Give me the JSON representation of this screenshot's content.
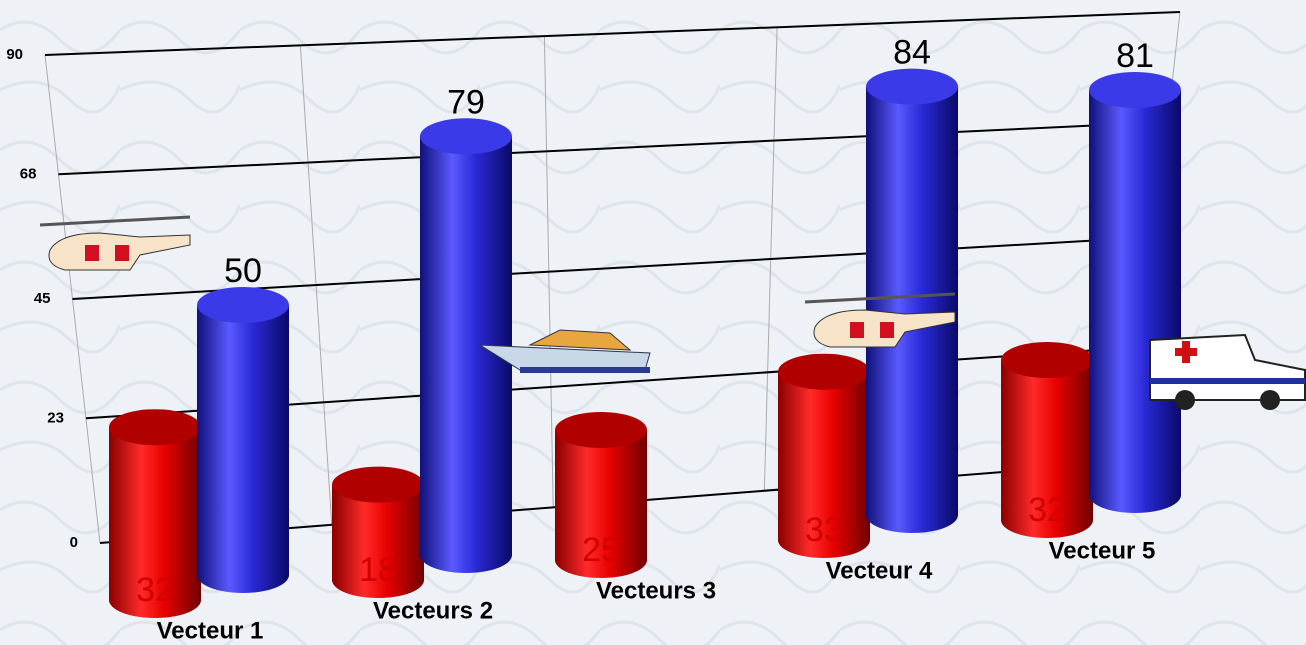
{
  "chart_data": {
    "type": "bar",
    "categories": [
      "Vecteur 1",
      "Vecteurs 2",
      "Vecteurs 3",
      "Vecteur 4",
      "Vecteur 5"
    ],
    "series": [
      {
        "color": "#e00000",
        "values": [
          32,
          18,
          25,
          33,
          32
        ]
      },
      {
        "color": "#2a2ad8",
        "values": [
          50,
          79,
          null,
          84,
          81
        ]
      }
    ],
    "ylim": [
      0,
      90
    ],
    "yticks": [
      0,
      23,
      45,
      68,
      90
    ],
    "grid": true
  }
}
